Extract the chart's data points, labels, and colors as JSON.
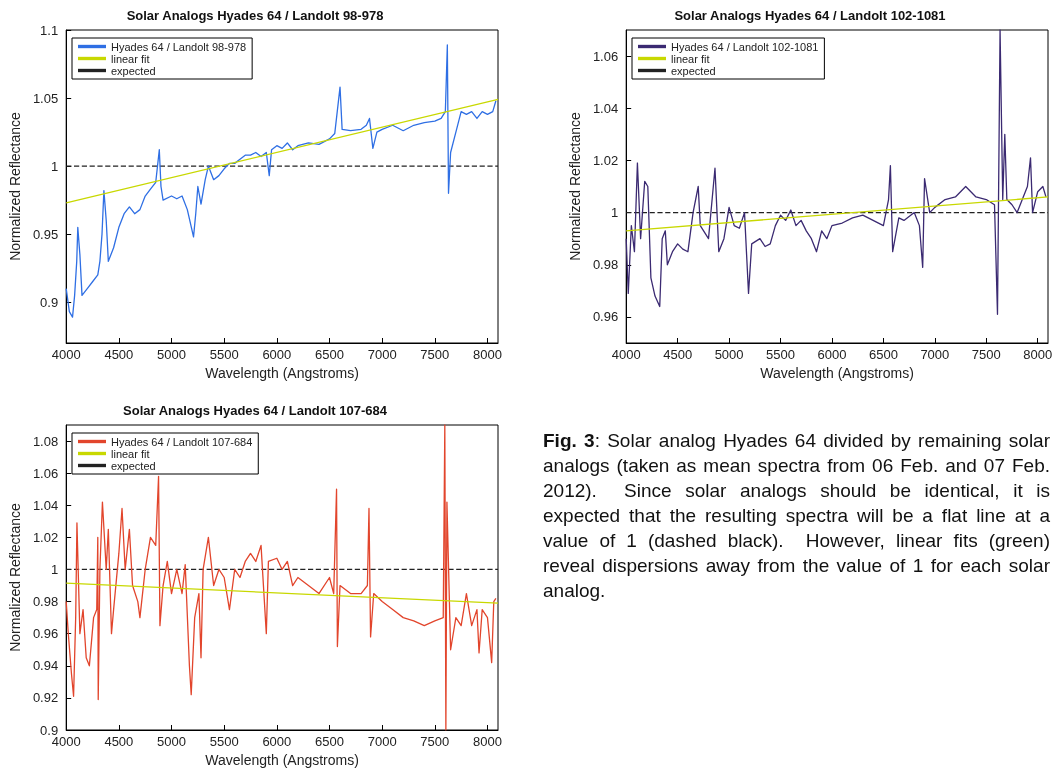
{
  "chart_data": [
    {
      "type": "line",
      "title": "Solar Analogs Hyades 64 / Landolt 98-978",
      "xlabel": "Wavelength (Angstroms)",
      "ylabel": "Normalized Reflectance",
      "xlim": [
        4000,
        8100
      ],
      "xticks": [
        4000,
        4500,
        5000,
        5500,
        6000,
        6500,
        7000,
        7500,
        8000
      ],
      "ylim": [
        0.87,
        1.1
      ],
      "yticks": [
        0.9,
        0.95,
        1,
        1.05,
        1.1
      ],
      "grid": false,
      "legend": "top left",
      "marker": "none",
      "series": [
        {
          "name": "Hyades 64 / Landolt 98-978",
          "color": "#2f6fe4",
          "x": [
            4000,
            4030,
            4060,
            4080,
            4100,
            4110,
            4130,
            4150,
            4200,
            4250,
            4300,
            4320,
            4340,
            4358,
            4380,
            4400,
            4450,
            4500,
            4550,
            4600,
            4650,
            4700,
            4750,
            4800,
            4850,
            4884,
            4900,
            4920,
            5000,
            5050,
            5100,
            5150,
            5209,
            5230,
            5250,
            5280,
            5320,
            5350,
            5400,
            5450,
            5500,
            5550,
            5600,
            5650,
            5700,
            5750,
            5800,
            5850,
            5900,
            5928,
            5950,
            6000,
            6050,
            6100,
            6150,
            6200,
            6300,
            6400,
            6450,
            6500,
            6550,
            6600,
            6620,
            6700,
            6800,
            6850,
            6880,
            6912,
            6950,
            7000,
            7100,
            7200,
            7300,
            7400,
            7500,
            7560,
            7600,
            7619,
            7630,
            7650,
            7700,
            7750,
            7800,
            7850,
            7900,
            7950,
            8000,
            8050,
            8080
          ],
          "values": [
            0.91,
            0.893,
            0.889,
            0.905,
            0.93,
            0.955,
            0.935,
            0.905,
            0.91,
            0.915,
            0.92,
            0.93,
            0.95,
            0.982,
            0.96,
            0.93,
            0.94,
            0.955,
            0.965,
            0.97,
            0.965,
            0.968,
            0.978,
            0.983,
            0.988,
            1.012,
            0.985,
            0.975,
            0.978,
            0.976,
            0.978,
            0.968,
            0.948,
            0.965,
            0.985,
            0.972,
            0.99,
            1,
            0.99,
            0.993,
            0.998,
            1.002,
            1.002,
            1.005,
            1.008,
            1.008,
            1.01,
            1.007,
            1.01,
            0.993,
            1.012,
            1.015,
            1.013,
            1.017,
            1.012,
            1.015,
            1.017,
            1.016,
            1.018,
            1.02,
            1.024,
            1.058,
            1.027,
            1.026,
            1.027,
            1.03,
            1.035,
            1.013,
            1.025,
            1.027,
            1.03,
            1.026,
            1.03,
            1.032,
            1.033,
            1.035,
            1.04,
            1.089,
            0.98,
            1.01,
            1.025,
            1.04,
            1.038,
            1.04,
            1.035,
            1.04,
            1.038,
            1.04,
            1.048
          ]
        },
        {
          "name": "linear fit",
          "color": "#c8d800",
          "x": [
            4000,
            8100
          ],
          "values": [
            0.973,
            1.049
          ]
        },
        {
          "name": "expected",
          "color": "#222222",
          "line_style": "dashed",
          "x": [
            4000,
            8100
          ],
          "values": [
            1,
            1
          ]
        }
      ]
    },
    {
      "type": "line",
      "title": "Solar Analogs Hyades 64 / Landolt 102-1081",
      "xlabel": "Wavelength (Angstroms)",
      "ylabel": "Normalized Reflectance",
      "xlim": [
        4000,
        8100
      ],
      "xticks": [
        4000,
        4500,
        5000,
        5500,
        6000,
        6500,
        7000,
        7500,
        8000
      ],
      "ylim": [
        0.95,
        1.07
      ],
      "yticks": [
        0.96,
        0.98,
        1,
        1.02,
        1.04,
        1.06
      ],
      "grid": false,
      "legend": "top left",
      "marker": "none",
      "series": [
        {
          "name": "Hyades 64 / Landolt 102-1081",
          "color": "#3b2a72",
          "x": [
            4000,
            4020,
            4050,
            4080,
            4109,
            4140,
            4180,
            4210,
            4240,
            4280,
            4326,
            4350,
            4380,
            4400,
            4450,
            4500,
            4550,
            4600,
            4650,
            4700,
            4720,
            4800,
            4863,
            4900,
            4950,
            5000,
            5050,
            5100,
            5150,
            5189,
            5220,
            5300,
            5350,
            5400,
            5450,
            5500,
            5550,
            5600,
            5650,
            5700,
            5750,
            5800,
            5850,
            5900,
            5950,
            6000,
            6100,
            6200,
            6300,
            6400,
            6500,
            6550,
            6568,
            6590,
            6650,
            6700,
            6800,
            6850,
            6882,
            6900,
            6950,
            7000,
            7100,
            7200,
            7300,
            7400,
            7500,
            7580,
            7609,
            7634,
            7660,
            7680,
            7700,
            7750,
            7800,
            7850,
            7900,
            7930,
            7950,
            8000,
            8050,
            8080
          ],
          "values": [
            0.99,
            0.969,
            0.995,
            0.985,
            1.019,
            0.99,
            1.012,
            1.01,
            0.975,
            0.968,
            0.964,
            0.99,
            0.993,
            0.98,
            0.985,
            0.988,
            0.986,
            0.985,
            1,
            1.01,
            0.995,
            0.99,
            1.017,
            0.985,
            0.99,
            1.002,
            0.995,
            0.994,
            1,
            0.969,
            0.988,
            0.99,
            0.987,
            0.988,
            0.995,
            0.999,
            0.997,
            1.001,
            0.995,
            0.997,
            0.993,
            0.99,
            0.985,
            0.993,
            0.99,
            0.995,
            0.996,
            0.998,
            0.999,
            0.997,
            0.995,
            1.005,
            1.018,
            0.985,
            0.998,
            0.997,
            1,
            0.995,
            0.979,
            1.013,
            1,
            1.002,
            1.005,
            1.006,
            1.01,
            1.006,
            1.005,
            1.003,
            0.961,
            1.07,
            1.005,
            1.03,
            1.005,
            1.003,
            1,
            1.005,
            1.01,
            1.021,
            1,
            1.008,
            1.01,
            1.006
          ]
        },
        {
          "name": "linear fit",
          "color": "#c8d800",
          "x": [
            4000,
            8100
          ],
          "values": [
            0.993,
            1.006
          ]
        },
        {
          "name": "expected",
          "color": "#222222",
          "line_style": "dashed",
          "x": [
            4000,
            8100
          ],
          "values": [
            1,
            1
          ]
        }
      ]
    },
    {
      "type": "line",
      "title": "Solar Analogs Hyades 64 / Landolt 107-684",
      "xlabel": "Wavelength (Angstroms)",
      "ylabel": "Normalized Reflectance",
      "xlim": [
        4000,
        8100
      ],
      "xticks": [
        4000,
        4500,
        5000,
        5500,
        6000,
        6500,
        7000,
        7500,
        8000
      ],
      "ylim": [
        0.9,
        1.09
      ],
      "yticks": [
        0.9,
        0.92,
        0.94,
        0.96,
        0.98,
        1,
        1.02,
        1.04,
        1.06,
        1.08
      ],
      "grid": false,
      "legend": "top left",
      "marker": "none",
      "series": [
        {
          "name": "Hyades 64 / Landolt 107-684",
          "color": "#e2452c",
          "x": [
            4000,
            4020,
            4050,
            4070,
            4090,
            4102,
            4130,
            4160,
            4190,
            4220,
            4260,
            4290,
            4300,
            4304,
            4320,
            4344,
            4380,
            4400,
            4430,
            4450,
            4500,
            4530,
            4560,
            4600,
            4630,
            4680,
            4700,
            4750,
            4800,
            4850,
            4877,
            4890,
            4920,
            4960,
            5000,
            5050,
            5100,
            5130,
            5170,
            5187,
            5220,
            5260,
            5280,
            5300,
            5350,
            5400,
            5450,
            5500,
            5550,
            5600,
            5650,
            5700,
            5750,
            5800,
            5850,
            5900,
            5920,
            6000,
            6050,
            6100,
            6150,
            6200,
            6300,
            6400,
            6500,
            6540,
            6567,
            6575,
            6600,
            6700,
            6800,
            6860,
            6875,
            6890,
            6920,
            7000,
            7100,
            7200,
            7300,
            7400,
            7500,
            7580,
            7595,
            7605,
            7615,
            7650,
            7700,
            7750,
            7800,
            7850,
            7900,
            7920,
            7950,
            8000,
            8040,
            8060,
            8080
          ],
          "values": [
            0.98,
            0.96,
            0.935,
            0.921,
            0.97,
            1.029,
            0.96,
            0.975,
            0.945,
            0.94,
            0.97,
            0.975,
            1.02,
            0.919,
            1,
            1.042,
            1,
            1.025,
            0.96,
            0.975,
            1.01,
            1.038,
            1,
            1.025,
            0.99,
            0.98,
            0.97,
            1,
            1.02,
            1.015,
            1.058,
            0.965,
            0.99,
            1.005,
            0.985,
            1,
            0.985,
            1.003,
            0.94,
            0.922,
            0.97,
            0.985,
            0.945,
            1,
            1.02,
            0.99,
            1,
            0.995,
            0.975,
            1,
            0.995,
            1.005,
            1.01,
            1.005,
            1.015,
            0.96,
            1.005,
            1.007,
            1,
            1.005,
            0.99,
            0.995,
            0.99,
            0.985,
            0.995,
            0.985,
            1.05,
            0.952,
            0.99,
            0.985,
            0.985,
            0.99,
            1.038,
            0.958,
            0.985,
            0.98,
            0.975,
            0.97,
            0.968,
            0.965,
            0.968,
            0.97,
            1.09,
            0.9,
            1.042,
            0.95,
            0.97,
            0.965,
            0.985,
            0.965,
            0.975,
            0.948,
            0.975,
            0.97,
            0.942,
            0.98,
            0.982
          ]
        },
        {
          "name": "linear fit",
          "color": "#c8d800",
          "x": [
            4000,
            8100
          ],
          "values": [
            0.9915,
            0.979
          ]
        },
        {
          "name": "expected",
          "color": "#222222",
          "line_style": "dashed",
          "x": [
            4000,
            8100
          ],
          "values": [
            1,
            1
          ]
        }
      ]
    },
    {
      "type": "other",
      "annotations": [
        "Fig. 3",
        ": Solar analog Hyades 64 divided by remaining solar analogs (taken as mean spectra from 06 Feb. and 07 Feb. 2012).  Since solar analogs should be identical, it is expected that the resulting spectra will be a flat line at a value of 1 (dashed black).  However, linear fits (green) reveal dispersions away from the value of 1 for each solar analog."
      ]
    }
  ]
}
